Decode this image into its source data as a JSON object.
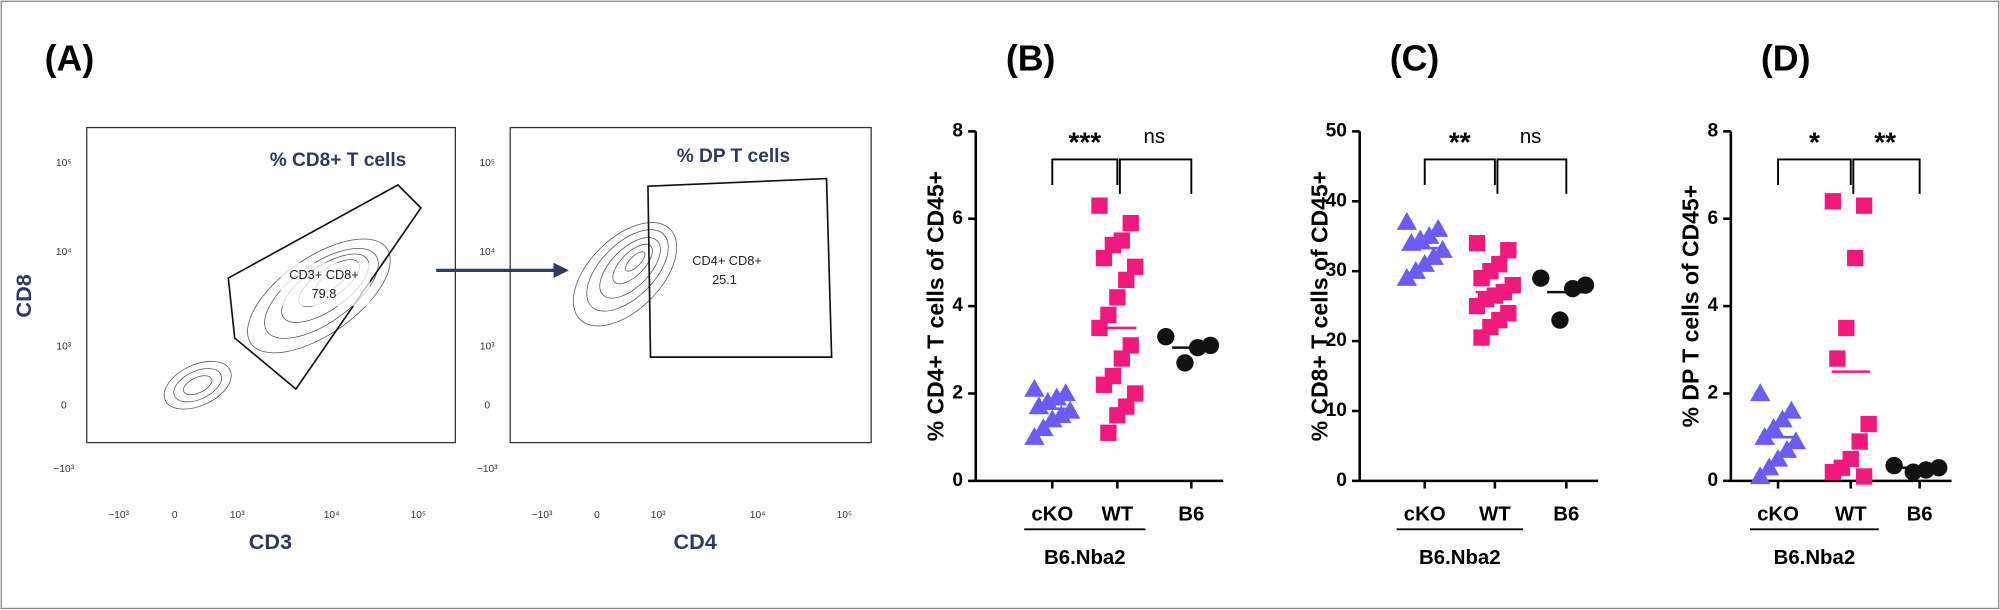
{
  "panel_a": {
    "label": "(A)",
    "plots": [
      {
        "title": "% CD8+ T cells",
        "gate_name": "CD3+ CD8+",
        "gate_value": 79.8,
        "x_label": "CD3",
        "y_label": "CD8",
        "x_tick_labels": [
          "−10³",
          "0",
          "10³",
          "10⁴",
          "10⁵"
        ],
        "y_tick_labels": [
          "10⁵",
          "10⁴",
          "10³",
          "0",
          "−10³"
        ]
      },
      {
        "title": "% DP T cells",
        "gate_name": "CD4+ CD8+",
        "gate_value": 25.1,
        "x_label": "CD4",
        "x_tick_labels": [
          "−10³",
          "0",
          "10³",
          "10⁴",
          "10⁵"
        ],
        "y_tick_labels": [
          "10⁵",
          "10⁴",
          "10³",
          "0",
          "−10³"
        ]
      }
    ]
  },
  "chart_data": [
    {
      "type": "strip",
      "title": "(B)",
      "y_label": "% CD4+ T cells of CD45+",
      "categories": [
        "cKO",
        "WT",
        "B6"
      ],
      "group_label": "B6.Nba2",
      "comparisons": [
        "***",
        "ns"
      ],
      "colors": [
        "#6b5cf6",
        "#f01a7c",
        "#111111"
      ],
      "markers": [
        "triangle",
        "square",
        "circle"
      ],
      "values": [
        [
          2.1,
          2.0,
          1.9,
          1.8,
          1.7,
          1.6,
          1.5,
          1.4,
          1.2,
          1.0
        ],
        [
          6.3,
          5.9,
          5.5,
          5.4,
          5.1,
          4.9,
          4.6,
          4.2,
          3.8,
          3.5,
          3.1,
          2.8,
          2.4,
          2.2,
          2.0,
          1.7,
          1.5,
          1.1
        ],
        [
          3.3,
          3.1,
          3.05,
          2.7
        ]
      ],
      "means": [
        1.65,
        3.5,
        3.05
      ],
      "ylim": [
        0,
        8
      ],
      "yticks": [
        0,
        2,
        4,
        6,
        8
      ]
    },
    {
      "type": "strip",
      "title": "(C)",
      "y_label": "% CD8+ T cells of CD45+",
      "categories": [
        "cKO",
        "WT",
        "B6"
      ],
      "group_label": "B6.Nba2",
      "comparisons": [
        "**",
        "ns"
      ],
      "colors": [
        "#6b5cf6",
        "#f01a7c",
        "#111111"
      ],
      "markers": [
        "triangle",
        "square",
        "circle"
      ],
      "values": [
        [
          37,
          36,
          35,
          34.5,
          34,
          33,
          32,
          31,
          30,
          29
        ],
        [
          34,
          33,
          31,
          30,
          29,
          28,
          27,
          26.5,
          26,
          25,
          24,
          23,
          22,
          20.5
        ],
        [
          29,
          28,
          27.5,
          23
        ]
      ],
      "means": [
        33.3,
        27,
        27
      ],
      "ylim": [
        0,
        50
      ],
      "yticks": [
        0,
        10,
        20,
        30,
        40,
        50
      ]
    },
    {
      "type": "strip",
      "title": "(D)",
      "y_label": "% DP T cells of CD45+",
      "categories": [
        "cKO",
        "WT",
        "B6"
      ],
      "group_label": "B6.Nba2",
      "comparisons": [
        "*",
        "**"
      ],
      "colors": [
        "#6b5cf6",
        "#f01a7c",
        "#111111"
      ],
      "markers": [
        "triangle",
        "square",
        "circle"
      ],
      "values": [
        [
          2.0,
          1.6,
          1.4,
          1.2,
          1.0,
          0.9,
          0.7,
          0.5,
          0.3,
          0.1
        ],
        [
          6.4,
          6.3,
          5.1,
          3.5,
          2.8,
          1.3,
          0.9,
          0.5,
          0.3,
          0.2,
          0.1
        ],
        [
          0.35,
          0.3,
          0.25,
          0.2
        ]
      ],
      "means": [
        1.0,
        2.5,
        0.3
      ],
      "ylim": [
        0,
        8
      ],
      "yticks": [
        0,
        2,
        4,
        6,
        8
      ]
    }
  ]
}
